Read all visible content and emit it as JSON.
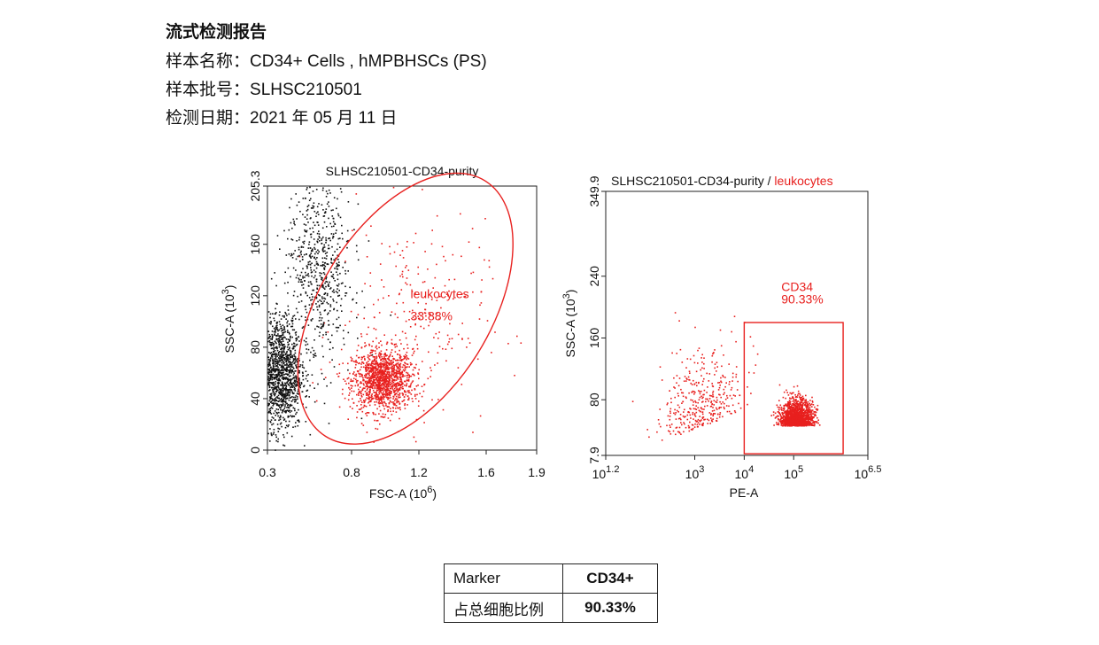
{
  "report": {
    "title": "流式检测报告",
    "sample_name_label": "样本名称：",
    "sample_name": "CD34+ Cells , hMPBHSCs (PS)",
    "batch_label": "样本批号：",
    "batch": "SLHSC210501",
    "date_label": "检测日期：",
    "date": "2021 年 05 月 11 日"
  },
  "chart_data": [
    {
      "type": "scatter",
      "title": "SLHSC210501-CD34-purity",
      "xlabel": "FSC-A",
      "xlabel_unit": "(10",
      "xlabel_exp": "6",
      "ylabel": "SSC-A",
      "ylabel_unit": "(10",
      "ylabel_exp": "3",
      "xlim": [
        0.3,
        1.9
      ],
      "ylim": [
        0,
        205.3
      ],
      "xticks": [
        "0.3",
        "0.8",
        "1.2",
        "1.6",
        "1.9"
      ],
      "xtick_values": [
        0.3,
        0.8,
        1.2,
        1.6,
        1.9
      ],
      "yticks": [
        "0",
        "40",
        "80",
        "120",
        "160",
        "205.3"
      ],
      "ytick_values": [
        0,
        40,
        80,
        120,
        160,
        205.3
      ],
      "gate": {
        "name": "leukocytes",
        "percent": "33.88%",
        "shape": "ellipse",
        "center": [
          1.12,
          110
        ],
        "semi_axes_fsc": [
          0.48,
          0.23
        ],
        "semi_axes_ssc": [
          105,
          0
        ],
        "color": "#e8201e"
      },
      "populations": [
        {
          "name": "gated",
          "color": "#e8201e",
          "center": [
            0.98,
            55
          ],
          "spread": [
            0.09,
            12
          ],
          "count": 1300
        },
        {
          "name": "gated-sparse",
          "color": "#e8201e",
          "center": [
            1.15,
            100
          ],
          "spread": [
            0.22,
            40
          ],
          "count": 260
        },
        {
          "name": "ungated-low",
          "color": "#111111",
          "center": [
            0.38,
            60
          ],
          "spread": [
            0.06,
            22
          ],
          "count": 1100
        },
        {
          "name": "ungated-upper",
          "color": "#111111",
          "center": [
            0.6,
            140
          ],
          "spread": [
            0.1,
            38
          ],
          "count": 650
        }
      ]
    },
    {
      "type": "scatter",
      "title": "SLHSC210501-CD34-purity / ",
      "title_gate": "leukocytes",
      "xlabel": "PE-A",
      "ylabel": "SSC-A",
      "ylabel_unit": "(10",
      "ylabel_exp": "3",
      "xscale": "log",
      "xlim": [
        1.2,
        6.5
      ],
      "ylim": [
        7.9,
        349.9
      ],
      "xticks": [
        {
          "base": "10",
          "exp": "1.2",
          "value": 1.2
        },
        {
          "base": "10",
          "exp": "3",
          "value": 3
        },
        {
          "base": "10",
          "exp": "4",
          "value": 4
        },
        {
          "base": "10",
          "exp": "5",
          "value": 5
        },
        {
          "base": "10",
          "exp": "6.5",
          "value": 6.5
        }
      ],
      "yticks": [
        "7.9",
        "80",
        "160",
        "240",
        "349.9"
      ],
      "ytick_values": [
        7.9,
        80,
        160,
        240,
        349.9
      ],
      "gate": {
        "name": "CD34",
        "percent": "90.33%",
        "shape": "rectangle",
        "x_range": [
          4.0,
          6.0
        ],
        "y_range": [
          10,
          180
        ],
        "color": "#e8201e"
      },
      "populations": [
        {
          "name": "cd34-pos",
          "color": "#e8201e",
          "center": [
            5.05,
            52
          ],
          "spread": [
            0.17,
            17
          ],
          "count": 1400
        },
        {
          "name": "cd34-neg",
          "color": "#e8201e",
          "center": [
            3.1,
            70
          ],
          "spread": [
            0.45,
            45
          ],
          "count": 380
        }
      ]
    }
  ],
  "table": {
    "header": [
      "Marker",
      "CD34+"
    ],
    "rows": [
      [
        "占总细胞比例",
        "90.33%"
      ]
    ]
  }
}
